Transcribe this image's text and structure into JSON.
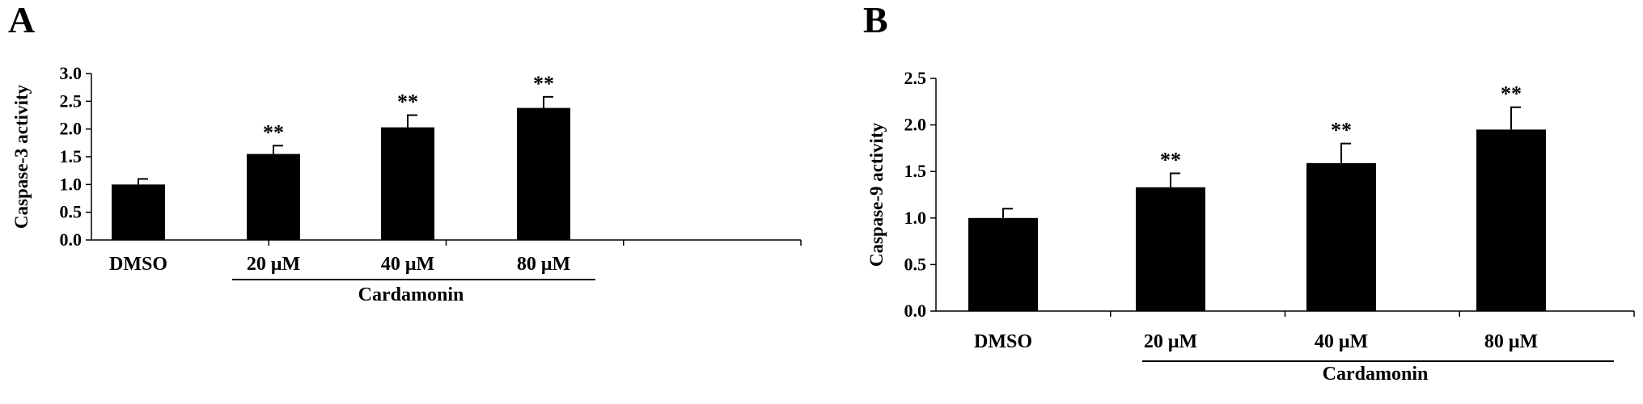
{
  "chart_data": [
    {
      "type": "bar",
      "panel": "A",
      "categories": [
        "DMSO",
        "20 μM",
        "40 μM",
        "80 μM"
      ],
      "values": [
        1.0,
        1.55,
        2.03,
        2.38
      ],
      "errors": [
        0.1,
        0.15,
        0.22,
        0.2
      ],
      "significance": [
        "",
        "**",
        "**",
        "**"
      ],
      "ylabel": "Caspase-3 activity",
      "ylim": [
        0,
        3.0
      ],
      "yticks": [
        "0.0",
        "0.5",
        "1.0",
        "1.5",
        "2.0",
        "2.5",
        "3.0"
      ],
      "group_label": "Cardamonin",
      "grid": false
    },
    {
      "type": "bar",
      "panel": "B",
      "categories": [
        "DMSO",
        "20 μM",
        "40 μM",
        "80 μM"
      ],
      "values": [
        1.0,
        1.33,
        1.59,
        1.95
      ],
      "errors": [
        0.1,
        0.15,
        0.21,
        0.24
      ],
      "significance": [
        "",
        "**",
        "**",
        "**"
      ],
      "ylabel": "Caspase-9 activity",
      "ylim": [
        0,
        2.5
      ],
      "yticks": [
        "0.0",
        "0.5",
        "1.0",
        "1.5",
        "2.0",
        "2.5"
      ],
      "group_label": "Cardamonin",
      "grid": false
    }
  ]
}
